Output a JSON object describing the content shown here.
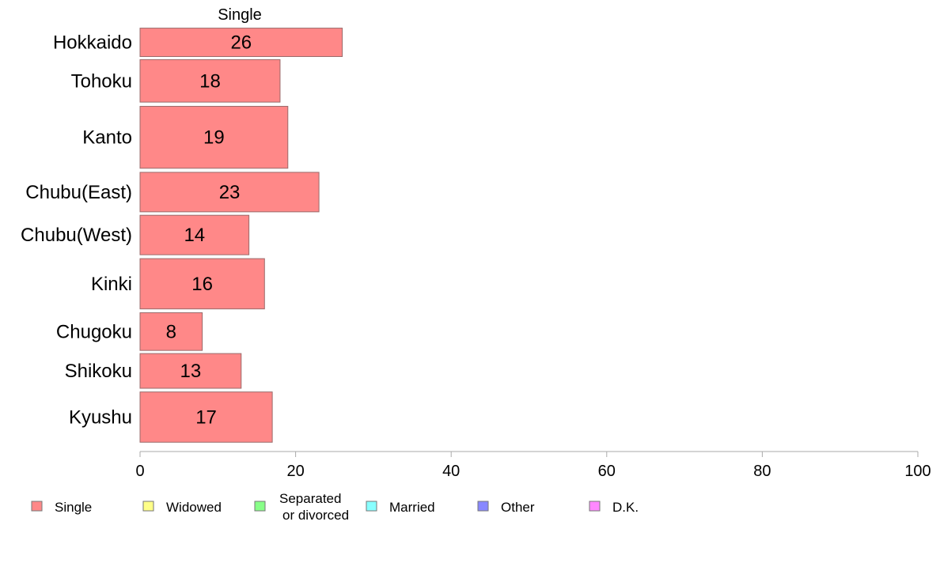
{
  "chart_data": {
    "type": "bar",
    "orientation": "horizontal",
    "panel_title": "Single",
    "categories": [
      "Hokkaido",
      "Tohoku",
      "Kanto",
      "Chubu(East)",
      "Chubu(West)",
      "Kinki",
      "Chugoku",
      "Shikoku",
      "Kyushu"
    ],
    "category_weights": [
      0.95,
      1.42,
      2.05,
      1.32,
      1.32,
      1.68,
      1.26,
      1.16,
      1.68
    ],
    "series": [
      {
        "name": "Single",
        "values": [
          26,
          18,
          19,
          23,
          14,
          16,
          8,
          13,
          17
        ],
        "color": "#ff8888"
      }
    ],
    "data_labels": [
      "26",
      "18",
      "19",
      "23",
      "14",
      "16",
      "8",
      "13",
      "17"
    ],
    "xlim": [
      0,
      100
    ],
    "x_ticks": [
      0,
      20,
      40,
      60,
      80,
      100
    ],
    "x_tick_labels": [
      "0",
      "20",
      "40",
      "60",
      "80",
      "100"
    ],
    "grid": false,
    "legend_position": "bottom",
    "legend": [
      {
        "label": "Single",
        "color": "#ff8888"
      },
      {
        "label": "Widowed",
        "color": "#ffff88"
      },
      {
        "label": "Separated\nor divorced",
        "color": "#88ff88"
      },
      {
        "label": "Married",
        "color": "#88ffff"
      },
      {
        "label": "Other",
        "color": "#8888ff"
      },
      {
        "label": "D.K.",
        "color": "#ff88ff"
      }
    ],
    "bar_border_color": "#9a6a6a",
    "axis_color": "#aaaaaa"
  }
}
